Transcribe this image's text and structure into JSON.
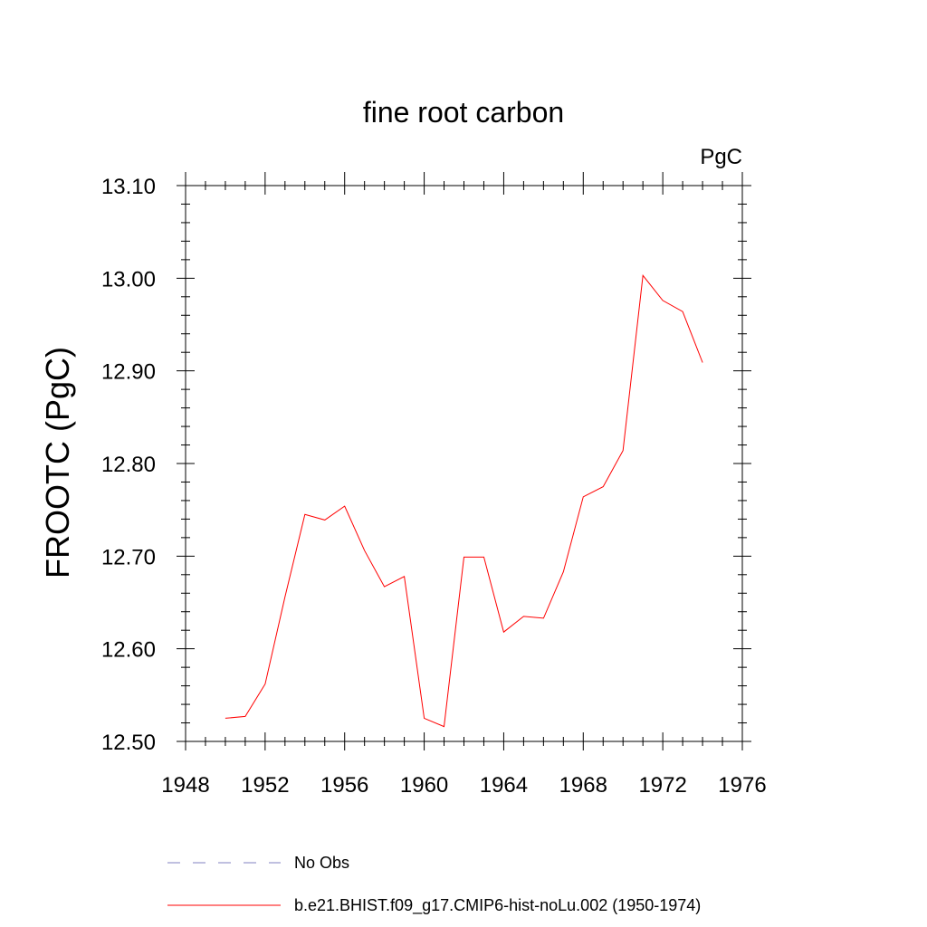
{
  "chart_data": {
    "type": "line",
    "title": "fine root carbon",
    "units_label": "PgC",
    "ylabel": "FROOTC  (PgC)",
    "xlabel": "",
    "xlim": [
      1948,
      1976
    ],
    "ylim": [
      12.5,
      13.1
    ],
    "x_ticks": [
      1948,
      1952,
      1956,
      1960,
      1964,
      1968,
      1972,
      1976
    ],
    "x_tick_labels": [
      "1948",
      "1952",
      "1956",
      "1960",
      "1964",
      "1968",
      "1972",
      "1976"
    ],
    "y_ticks": [
      12.5,
      12.6,
      12.7,
      12.8,
      12.9,
      13.0,
      13.1
    ],
    "y_tick_labels": [
      "12.50",
      "12.60",
      "12.70",
      "12.80",
      "12.90",
      "13.00",
      "13.10"
    ],
    "grid": false,
    "legend_position": "bottom",
    "legend": [
      {
        "label": "No Obs",
        "color": "#8080c0",
        "style": "dashed"
      },
      {
        "label": "b.e21.BHIST.f09_g17.CMIP6-hist-noLu.002 (1950-1974)",
        "color": "#ff0000",
        "style": "solid"
      }
    ],
    "series": [
      {
        "name": "b.e21.BHIST.f09_g17.CMIP6-hist-noLu.002 (1950-1974)",
        "color": "#ff0000",
        "x": [
          1950,
          1951,
          1952,
          1953,
          1954,
          1955,
          1956,
          1957,
          1958,
          1959,
          1960,
          1961,
          1962,
          1963,
          1964,
          1965,
          1966,
          1967,
          1968,
          1969,
          1970,
          1971,
          1972,
          1973,
          1974
        ],
        "y": [
          12.525,
          12.527,
          12.562,
          12.656,
          12.745,
          12.739,
          12.754,
          12.706,
          12.667,
          12.678,
          12.525,
          12.516,
          12.699,
          12.699,
          12.618,
          12.635,
          12.633,
          12.683,
          12.764,
          12.775,
          12.814,
          13.003,
          12.976,
          12.964,
          12.909
        ]
      }
    ]
  }
}
